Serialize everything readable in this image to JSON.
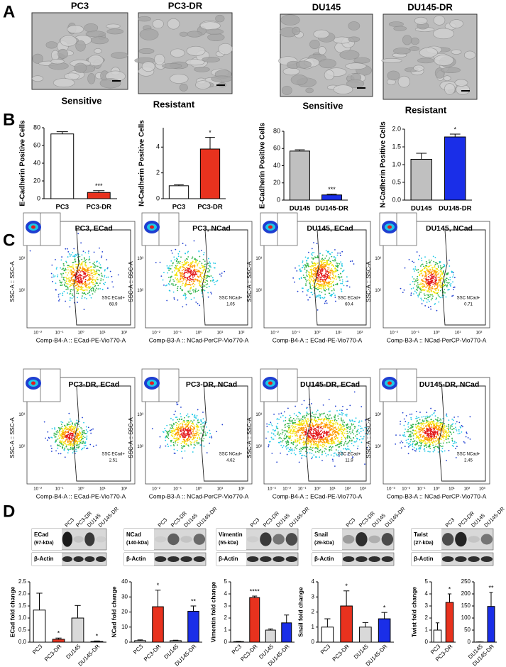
{
  "panel_labels": [
    "A",
    "B",
    "C",
    "D"
  ],
  "cell_images": [
    {
      "title": "PC3",
      "caption": "Sensitive"
    },
    {
      "title": "PC3-DR",
      "caption": "Resistant"
    },
    {
      "title": "DU145",
      "caption": "Sensitive"
    },
    {
      "title": "DU145-DR",
      "caption": "Resistant"
    }
  ],
  "chart_data": [
    {
      "type": "bar",
      "y_label": "E-Cadherin Positive Cells",
      "categories": [
        "PC3",
        "PC3-DR"
      ],
      "values": [
        73,
        7
      ],
      "errors": [
        2.5,
        2
      ],
      "colors": [
        "#ffffff",
        "#e8321e"
      ],
      "significance": [
        null,
        "***"
      ],
      "ylim": [
        0,
        80
      ],
      "yticks": [
        0,
        20,
        40,
        60,
        80
      ]
    },
    {
      "type": "bar",
      "y_label": "N-Cadherin Positive Cells",
      "categories": [
        "PC3",
        "PC3-DR"
      ],
      "values": [
        1.0,
        3.85
      ],
      "errors": [
        0.08,
        0.9
      ],
      "colors": [
        "#ffffff",
        "#e8321e"
      ],
      "significance": [
        null,
        "*"
      ],
      "ylim": [
        0,
        5.5
      ],
      "yticks": [
        0,
        2,
        4
      ]
    },
    {
      "type": "bar",
      "y_label": "E-Cadherin Positive Cells",
      "categories": [
        "DU145",
        "DU145-DR"
      ],
      "values": [
        57,
        6
      ],
      "errors": [
        1.5,
        1
      ],
      "colors": [
        "#c0c0c0",
        "#1a2ee8"
      ],
      "significance": [
        null,
        "***"
      ],
      "ylim": [
        0,
        80
      ],
      "yticks": [
        0,
        20,
        40,
        60,
        80
      ]
    },
    {
      "type": "bar",
      "y_label": "N-Cadherin Positive Cells",
      "categories": [
        "DU145",
        "DU145-DR"
      ],
      "values": [
        1.15,
        1.78
      ],
      "errors": [
        0.17,
        0.08
      ],
      "colors": [
        "#c0c0c0",
        "#1a2ee8"
      ],
      "significance": [
        null,
        "*"
      ],
      "ylim": [
        0,
        2
      ],
      "yticks": [
        {
          "value": 0,
          "label": "0.0"
        },
        {
          "value": 0.5,
          "label": "0.5"
        },
        {
          "value": 1,
          "label": "1.0"
        },
        {
          "value": 1.5,
          "label": "1.5"
        },
        {
          "value": 2,
          "label": "2.0"
        }
      ]
    },
    {
      "type": "bar",
      "y_label": "ECad fold change",
      "categories": [
        "PC3",
        "PC3-DR",
        "DU145",
        "DU145-DR"
      ],
      "values": [
        1.33,
        0.12,
        1.0,
        0.03
      ],
      "errors": [
        0.7,
        0.05,
        0.52,
        0.02
      ],
      "colors": [
        "#ffffff",
        "#e8321e",
        "#d9d9d9",
        "#1a2ee8"
      ],
      "significance": [
        null,
        "*",
        null,
        "*"
      ],
      "ylim": [
        0,
        2.5
      ],
      "yticks": [
        {
          "value": 0,
          "label": "0.0"
        },
        {
          "value": 0.5,
          "label": "0.5"
        },
        {
          "value": 1,
          "label": "1.0"
        },
        {
          "value": 1.5,
          "label": "1.5"
        },
        {
          "value": 2,
          "label": "2.0"
        },
        {
          "value": 2.5,
          "label": "2.5"
        }
      ]
    },
    {
      "type": "bar",
      "y_label": "NCad fold change",
      "categories": [
        "PC3",
        "PC3-DR",
        "DU145",
        "DU145-DR"
      ],
      "values": [
        1,
        23.5,
        1,
        20.5
      ],
      "errors": [
        0.5,
        11,
        0.3,
        3.5
      ],
      "colors": [
        "#ffffff",
        "#e8321e",
        "#d9d9d9",
        "#1a2ee8"
      ],
      "significance": [
        null,
        "*",
        null,
        "**"
      ],
      "ylim": [
        0,
        40
      ],
      "yticks": [
        0,
        10,
        20,
        30,
        40
      ]
    },
    {
      "type": "bar",
      "y_label": "Vimentin fold change",
      "categories": [
        "PC3",
        "PC3-DR",
        "DU145",
        "DU145-DR"
      ],
      "values": [
        0.05,
        3.7,
        1.0,
        1.6
      ],
      "errors": [
        0.02,
        0.12,
        0.1,
        0.65
      ],
      "colors": [
        "#ffffff",
        "#e8321e",
        "#d9d9d9",
        "#1a2ee8"
      ],
      "significance": [
        null,
        "****",
        null,
        null
      ],
      "ylim": [
        0,
        5
      ],
      "yticks": [
        0,
        1,
        2,
        3,
        4,
        5
      ]
    },
    {
      "type": "bar",
      "y_label": "Snail fold change",
      "categories": [
        "PC3",
        "PC3-DR",
        "DU145",
        "DU145-DR"
      ],
      "values": [
        1.0,
        2.4,
        1.0,
        1.55
      ],
      "errors": [
        0.55,
        1.0,
        0.3,
        0.42
      ],
      "colors": [
        "#ffffff",
        "#e8321e",
        "#d9d9d9",
        "#1a2ee8"
      ],
      "significance": [
        null,
        "*",
        null,
        "*"
      ],
      "ylim": [
        0,
        4
      ],
      "yticks": [
        0,
        1,
        2,
        3,
        4
      ]
    },
    {
      "type": "bar",
      "y_label": "Twist fold change",
      "categories": [
        "PC3",
        "PC3-DR"
      ],
      "values": [
        1.0,
        3.3
      ],
      "errors": [
        0.6,
        0.7
      ],
      "colors": [
        "#ffffff",
        "#e8321e"
      ],
      "significance": [
        null,
        "*"
      ],
      "ylim": [
        0,
        5
      ],
      "yticks": [
        0,
        1,
        2,
        3,
        4,
        5
      ]
    },
    {
      "type": "bar",
      "categories": [
        "DU145",
        "DU145-DR"
      ],
      "values": [
        1,
        148
      ],
      "errors": [
        0.3,
        58
      ],
      "colors": [
        "#d9d9d9",
        "#1a2ee8"
      ],
      "significance": [
        null,
        "**"
      ],
      "ylim": [
        0,
        250
      ],
      "yticks": [
        0,
        50,
        100,
        150,
        200,
        250
      ]
    }
  ],
  "flow_y_label": "SSC-A :: SSC-A",
  "flow_plots": [
    {
      "title": "PC3, ECad",
      "x_label": "Comp-B4-A :: ECad-PE-Vio770-A",
      "gate_name": "SSC ECad+",
      "gate_value": "68.9",
      "xticks": [
        "10⁻²",
        "10⁻¹",
        "10⁰",
        "10¹",
        "10²"
      ],
      "yticks": [
        "10²",
        "10³"
      ]
    },
    {
      "title": "PC3, NCad",
      "x_label": "Comp-B3-A :: NCad-PerCP-Vio770-A",
      "gate_name": "SSC NCad+",
      "gate_value": "1.05",
      "xticks": [
        "10⁻²",
        "10⁻¹",
        "10⁰",
        "10¹",
        "10²"
      ],
      "yticks": [
        "10²",
        "10³"
      ]
    },
    {
      "title": "DU145, ECad",
      "x_label": "Comp-B4-A :: ECad-PE-Vio770-A",
      "gate_name": "SSC ECad+",
      "gate_value": "60.4",
      "xticks": [
        "10⁻²",
        "10⁻¹",
        "10⁰",
        "10¹",
        "10²"
      ],
      "yticks": [
        "10²",
        "10³"
      ]
    },
    {
      "title": "DU145, NCad",
      "x_label": "Comp-B3-A :: NCad-PerCP-Vio770-A",
      "gate_name": "SSC NCad+",
      "gate_value": "0.71",
      "xticks": [
        "10⁻²",
        "10⁻¹",
        "10⁰",
        "10¹",
        "10²"
      ],
      "yticks": [
        "10²",
        "10³"
      ]
    },
    {
      "title": "PC3-DR, ECad",
      "x_label": "Comp-B4-A :: ECad-PE-Vio770-A",
      "gate_name": "SSC ECad+",
      "gate_value": "2.51",
      "xticks": [
        "10⁻²",
        "10⁻¹",
        "10⁰",
        "10¹",
        "10²"
      ],
      "yticks": [
        "10²",
        "10³"
      ]
    },
    {
      "title": "PC3-DR, NCad",
      "x_label": "Comp-B3-A :: NCad-PerCP-Vio770-A",
      "gate_name": "SSC NCad+",
      "gate_value": "4.62",
      "xticks": [
        "10⁻²",
        "10⁻¹",
        "10⁰",
        "10¹",
        "10²"
      ],
      "yticks": [
        "10²",
        "10³"
      ]
    },
    {
      "title": "DU145-DR, ECad",
      "x_label": "Comp-B4-A :: ECad-PE-Vio770-A",
      "gate_name": "SSC ECad+",
      "gate_value": "11.9",
      "xticks": [
        "10⁻³",
        "10⁻²",
        "10⁻¹",
        "10⁰",
        "10¹",
        "10²",
        "10³"
      ],
      "yticks": [
        "10²",
        "10³"
      ]
    },
    {
      "title": "DU145-DR, NCad",
      "x_label": "Comp-B3-A :: NCad-PerCP-Vio770-A",
      "gate_name": "SSC NCad+",
      "gate_value": "2.45",
      "xticks": [
        "10⁻³",
        "10⁻²",
        "10⁻¹",
        "10⁰",
        "10¹",
        "10²",
        "10³"
      ],
      "yticks": [
        "10²",
        "10³"
      ]
    }
  ],
  "blot_lanes": [
    "PC3",
    "PC3-DR",
    "DU145",
    "DU145-DR"
  ],
  "blot_loading": "β-Actin",
  "blots": [
    {
      "protein": "ECad",
      "size": "(97-kDa)"
    },
    {
      "protein": "NCad",
      "size": "(140-kDa)"
    },
    {
      "protein": "Vimentin",
      "size": "(55-kDa)"
    },
    {
      "protein": "Snail",
      "size": "(29-kDa)"
    },
    {
      "protein": "Twist",
      "size": "(27-kDa)"
    }
  ]
}
